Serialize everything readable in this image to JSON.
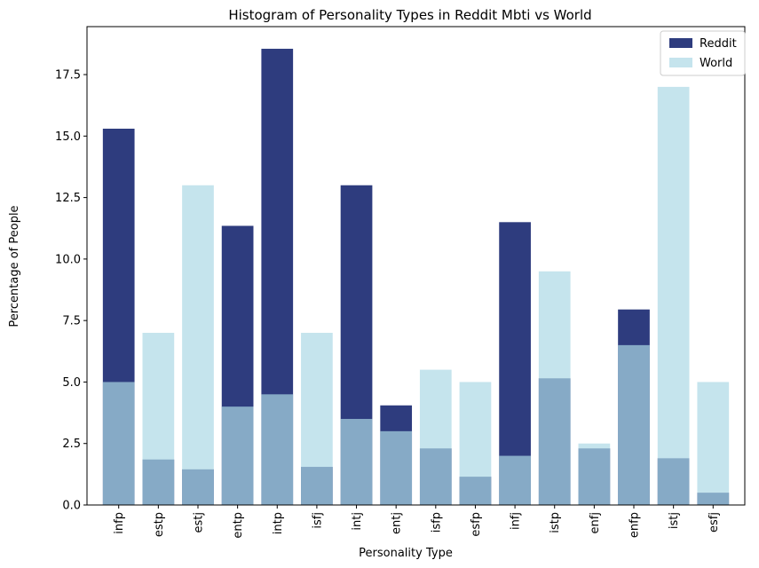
{
  "chart_data": {
    "type": "bar",
    "title": "Histogram of Personality Types in Reddit Mbti vs World",
    "xlabel": "Personality Type",
    "ylabel": "Percentage of People",
    "categories": [
      "infp",
      "estp",
      "estj",
      "entp",
      "intp",
      "isfj",
      "intj",
      "entj",
      "isfp",
      "esfp",
      "infj",
      "istp",
      "enfj",
      "enfp",
      "istj",
      "esfj"
    ],
    "series": [
      {
        "name": "Reddit",
        "color": "#2e3c7e",
        "values": [
          15.3,
          1.85,
          1.45,
          11.35,
          18.55,
          1.55,
          13.0,
          4.05,
          2.3,
          1.15,
          11.5,
          5.15,
          2.3,
          7.95,
          1.9,
          0.5
        ]
      },
      {
        "name": "World",
        "color": "#add8e6",
        "opacity": 0.7,
        "values": [
          5.0,
          7.0,
          13.0,
          4.0,
          4.5,
          7.0,
          3.5,
          3.0,
          5.5,
          5.0,
          2.0,
          9.5,
          2.5,
          6.5,
          17.0,
          5.0
        ]
      }
    ],
    "ylim": [
      0,
      19.45
    ],
    "yticks": [
      "0.0",
      "2.5",
      "5.0",
      "7.5",
      "10.0",
      "12.5",
      "15.0",
      "17.5"
    ],
    "ytick_values": [
      0,
      2.5,
      5,
      7.5,
      10,
      12.5,
      15,
      17.5
    ],
    "legend_position": "top-right",
    "grid": false
  }
}
